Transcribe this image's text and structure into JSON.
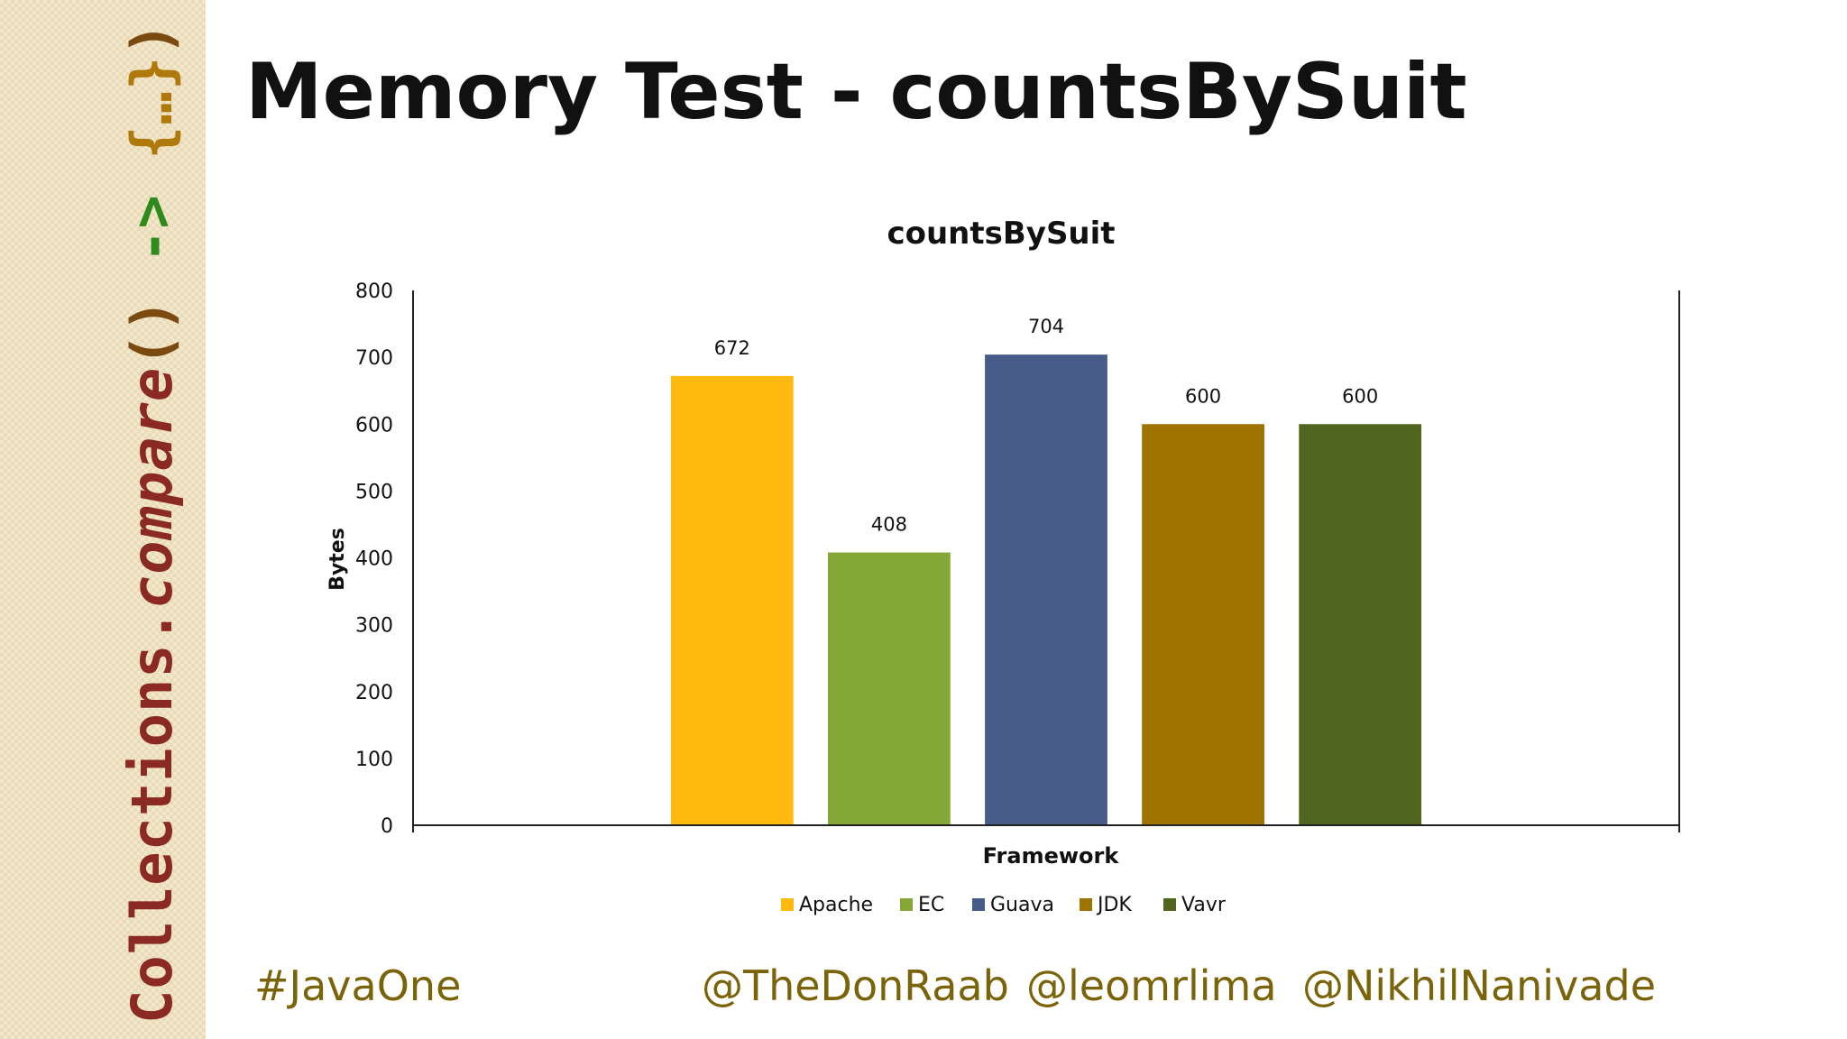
{
  "sidebar": {
    "parts": [
      {
        "text": "Collections",
        "color": "#8a2a22"
      },
      {
        "text": ".",
        "color": "#8a2a22"
      },
      {
        "text": "compare",
        "color": "#8a2a22"
      },
      {
        "text": "()",
        "color": "#7a4a10"
      },
      {
        "text": " -> ",
        "color": "#2f8a1e"
      },
      {
        "text": "{…}",
        "color": "#b0790c"
      },
      {
        "text": ")",
        "color": "#7a4a10"
      }
    ]
  },
  "slide": {
    "title": "Memory Test - countsBySuit"
  },
  "chart_data": {
    "type": "bar",
    "title": "countsBySuit",
    "xlabel": "Framework",
    "ylabel": "Bytes",
    "ylim": [
      0,
      800
    ],
    "yticks": [
      "0",
      "100",
      "200",
      "300",
      "400",
      "500",
      "600",
      "700",
      "800"
    ],
    "grid": false,
    "legend_position": "bottom",
    "series": [
      {
        "name": "Apache",
        "value": 672,
        "label": "672",
        "color": "#ffb90f"
      },
      {
        "name": "EC",
        "value": 408,
        "label": "408",
        "color": "#84a736"
      },
      {
        "name": "Guava",
        "value": 704,
        "label": "704",
        "color": "#465b87"
      },
      {
        "name": "JDK",
        "value": 600,
        "label": "600",
        "color": "#9e7300"
      },
      {
        "name": "Vavr",
        "value": 600,
        "label": "600",
        "color": "#50661f"
      }
    ]
  },
  "footer": {
    "hashtag": "#JavaOne",
    "handles": [
      "@TheDonRaab",
      "@leomrlima",
      "@NikhilNanivade"
    ]
  }
}
